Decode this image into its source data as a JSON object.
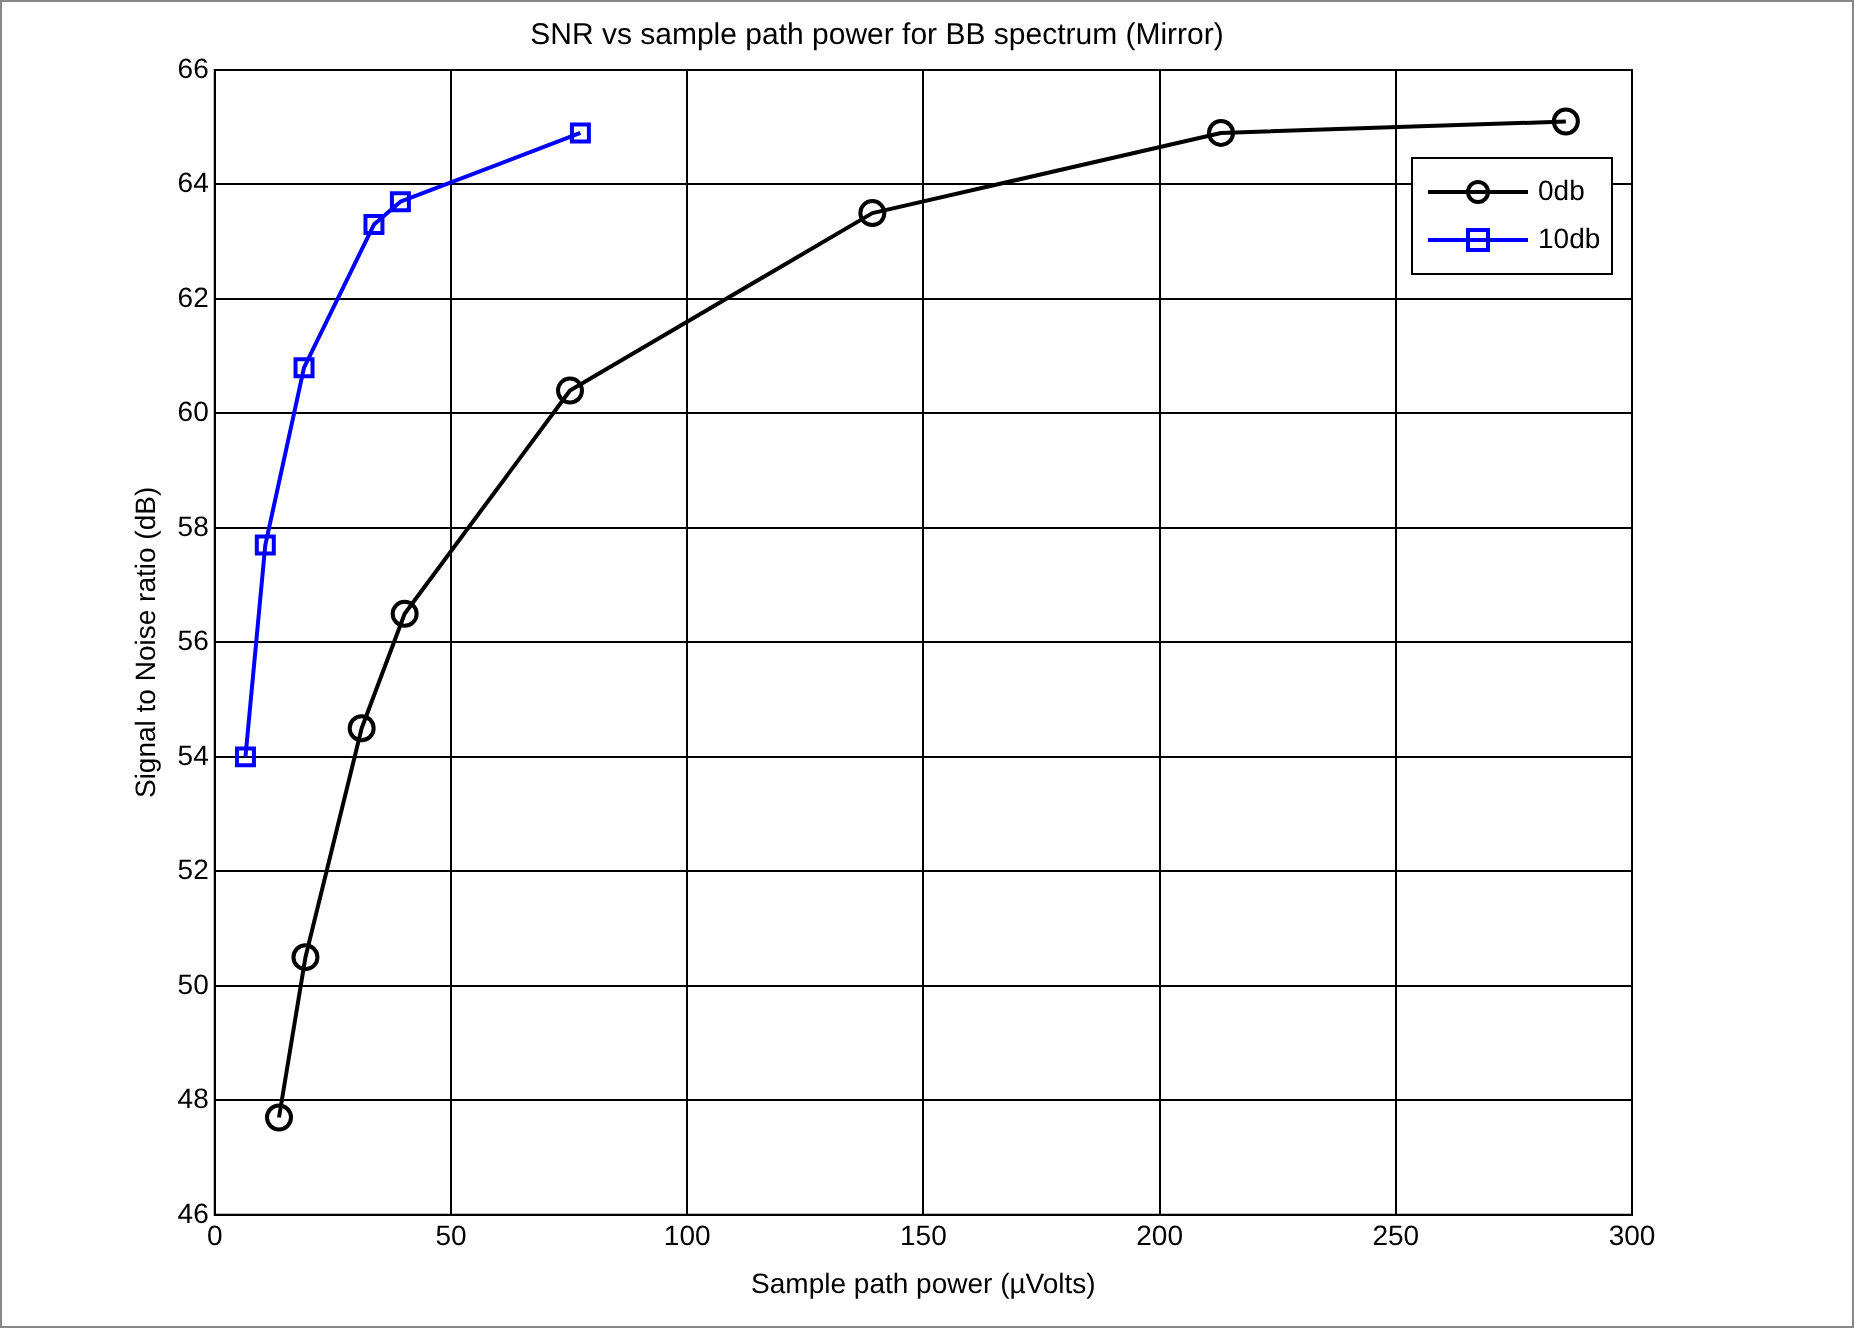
{
  "chart_data": {
    "type": "line",
    "title": "SNR vs sample path power for BB spectrum (Mirror)",
    "xlabel": "Sample path power (µVolts)",
    "ylabel": "Signal to Noise ratio (dB)",
    "series": [
      {
        "name": "0db",
        "color": "#000000",
        "marker": "circle",
        "x": [
          13.6,
          19.2,
          31.1,
          40.2,
          75.2,
          139.2,
          213,
          286
        ],
        "values": [
          47.7,
          50.5,
          54.5,
          56.5,
          60.4,
          63.5,
          64.9,
          65.1
        ]
      },
      {
        "name": "10db",
        "color": "#0000ff",
        "marker": "square",
        "x": [
          6.5,
          10.7,
          18.9,
          33.7,
          39.3,
          77.4
        ],
        "values": [
          54.0,
          57.7,
          60.8,
          63.3,
          63.7,
          64.9
        ]
      }
    ],
    "xlim": [
      0,
      300
    ],
    "xticks": [
      0,
      50,
      100,
      150,
      200,
      250,
      300
    ],
    "ylim": [
      46,
      66
    ],
    "yticks": [
      46,
      48,
      50,
      52,
      54,
      56,
      58,
      60,
      62,
      64,
      66
    ],
    "grid": true,
    "legend": "top right",
    "line_style": "solid"
  }
}
